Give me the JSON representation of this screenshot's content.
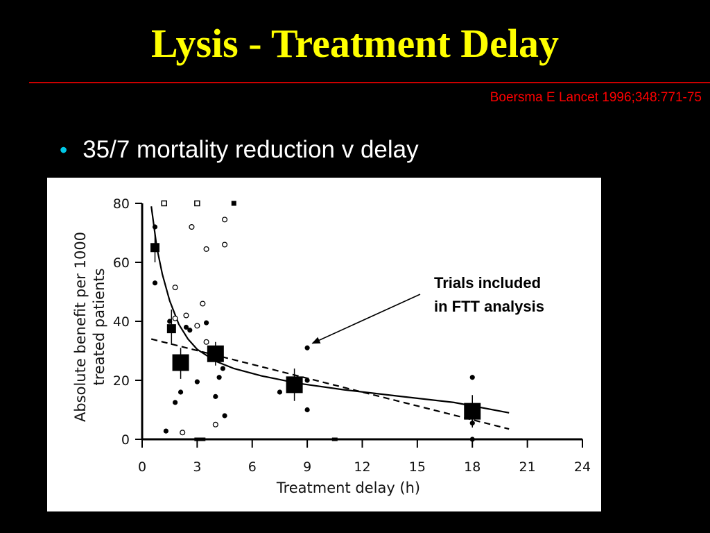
{
  "slide": {
    "title": "Lysis - Treatment Delay",
    "citation": "Boersma E Lancet 1996;348:771-75",
    "bullet": "35/7 mortality reduction v delay",
    "bullet_color": "#00c8e6",
    "title_color": "#ffff00",
    "rule_color": "#cc0000"
  },
  "chart_data": {
    "type": "scatter",
    "title": "",
    "xlabel": "Treatment delay (h)",
    "ylabel_line1": "Absolute benefit per 1000",
    "ylabel_line2": "treated patients",
    "xlim": [
      0,
      24
    ],
    "ylim": [
      0,
      80
    ],
    "xticks": [
      0,
      3,
      6,
      9,
      12,
      15,
      18,
      21,
      24
    ],
    "yticks": [
      0,
      20,
      40,
      60,
      80
    ],
    "xtick_labels": [
      "0",
      "3",
      "6",
      "9",
      "12",
      "15",
      "18",
      "21",
      "24"
    ],
    "ytick_labels": [
      "0",
      "20",
      "40",
      "60",
      "80"
    ],
    "filled_points": [
      [
        0.7,
        72
      ],
      [
        0.7,
        53
      ],
      [
        1.3,
        2.8
      ],
      [
        1.5,
        40
      ],
      [
        1.8,
        12.5
      ],
      [
        2.1,
        16
      ],
      [
        2.4,
        38
      ],
      [
        2.6,
        37
      ],
      [
        3.0,
        19.5
      ],
      [
        3.5,
        39.5
      ],
      [
        4.0,
        14.5
      ],
      [
        4.2,
        21
      ],
      [
        4.4,
        24
      ],
      [
        4.5,
        8
      ],
      [
        7.5,
        16
      ],
      [
        9.0,
        31
      ],
      [
        9.0,
        20
      ],
      [
        9.0,
        10
      ],
      [
        18.0,
        21
      ],
      [
        18.0,
        5.5
      ],
      [
        18.0,
        0
      ]
    ],
    "open_points": [
      [
        1.8,
        51.5
      ],
      [
        1.8,
        41
      ],
      [
        2.2,
        2.3
      ],
      [
        2.4,
        42
      ],
      [
        2.7,
        72
      ],
      [
        3.0,
        38.5
      ],
      [
        3.3,
        46
      ],
      [
        3.5,
        33
      ],
      [
        3.5,
        64.5
      ],
      [
        4.0,
        5
      ],
      [
        4.5,
        66
      ],
      [
        4.5,
        74.5
      ]
    ],
    "zero_points": [
      [
        3.0,
        0
      ],
      [
        3.2,
        0
      ],
      [
        3.3,
        0
      ],
      [
        10.5,
        0
      ]
    ],
    "open_squares_top": [
      [
        1.2,
        80
      ],
      [
        3.0,
        80
      ]
    ],
    "filled_square_top": [
      [
        5.0,
        80
      ]
    ],
    "grouped_means": [
      {
        "x": 0.7,
        "y": 65,
        "size": "small",
        "err_low": 60,
        "err_high": 70
      },
      {
        "x": 1.6,
        "y": 37.5,
        "size": "small",
        "err_low": 32,
        "err_high": 44
      },
      {
        "x": 2.1,
        "y": 26,
        "size": "large",
        "err_low": 20.5,
        "err_high": 31
      },
      {
        "x": 4.0,
        "y": 29,
        "size": "large",
        "err_low": 25,
        "err_high": 33
      },
      {
        "x": 8.3,
        "y": 18.5,
        "size": "large",
        "err_low": 13,
        "err_high": 24
      },
      {
        "x": 18.0,
        "y": 9.5,
        "size": "large",
        "err_low": 4,
        "err_high": 15
      }
    ],
    "fitted_curve_solid": [
      [
        0.5,
        79
      ],
      [
        0.8,
        65
      ],
      [
        1.1,
        56
      ],
      [
        1.5,
        47
      ],
      [
        2.0,
        39
      ],
      [
        2.5,
        34
      ],
      [
        3.0,
        30.5
      ],
      [
        4.0,
        26.5
      ],
      [
        5.0,
        24
      ],
      [
        6.5,
        21.5
      ],
      [
        8.5,
        19
      ],
      [
        11.0,
        16.8
      ],
      [
        14.0,
        14.6
      ],
      [
        17.0,
        12.5
      ],
      [
        20.0,
        9
      ]
    ],
    "fitted_line_dashed": [
      [
        0.5,
        34
      ],
      [
        20.0,
        3.5
      ]
    ],
    "annotation": {
      "line1": "Trials included",
      "line2": "in FTT analysis",
      "arrow_to": [
        9.2,
        33
      ]
    }
  }
}
